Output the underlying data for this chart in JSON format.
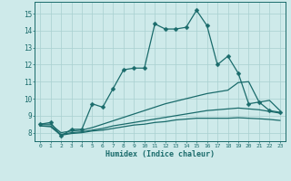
{
  "xlabel": "Humidex (Indice chaleur)",
  "xlim": [
    -0.5,
    23.5
  ],
  "ylim": [
    7.5,
    15.7
  ],
  "xticks": [
    0,
    1,
    2,
    3,
    4,
    5,
    6,
    7,
    8,
    9,
    10,
    11,
    12,
    13,
    14,
    15,
    16,
    17,
    18,
    19,
    20,
    21,
    22,
    23
  ],
  "yticks": [
    8,
    9,
    10,
    11,
    12,
    13,
    14,
    15
  ],
  "bg_color": "#ceeaea",
  "grid_color": "#a8d0d0",
  "line_color": "#1a6b6b",
  "line1_x": [
    0,
    1,
    2,
    3,
    4,
    5,
    6,
    7,
    8,
    9,
    10,
    11,
    12,
    13,
    14,
    15,
    16,
    17,
    18,
    19,
    20,
    21,
    22,
    23
  ],
  "line1_y": [
    8.5,
    8.6,
    7.8,
    8.2,
    8.2,
    9.7,
    9.5,
    10.6,
    11.7,
    11.8,
    11.8,
    14.4,
    14.1,
    14.1,
    14.2,
    15.2,
    14.3,
    12.0,
    12.5,
    11.5,
    9.7,
    9.8,
    9.3,
    9.2
  ],
  "line2_x": [
    0,
    1,
    2,
    3,
    4,
    5,
    6,
    7,
    8,
    9,
    10,
    11,
    12,
    13,
    14,
    15,
    16,
    17,
    18,
    19,
    20,
    21,
    22,
    23
  ],
  "line2_y": [
    8.5,
    8.5,
    8.0,
    8.1,
    8.15,
    8.3,
    8.5,
    8.7,
    8.9,
    9.1,
    9.3,
    9.5,
    9.7,
    9.85,
    10.0,
    10.15,
    10.3,
    10.4,
    10.5,
    10.95,
    11.0,
    9.8,
    9.9,
    9.3
  ],
  "line3_x": [
    0,
    1,
    2,
    3,
    4,
    5,
    6,
    7,
    8,
    9,
    10,
    11,
    12,
    13,
    14,
    15,
    16,
    17,
    18,
    19,
    20,
    21,
    22,
    23
  ],
  "line3_y": [
    8.4,
    8.4,
    7.9,
    8.0,
    8.05,
    8.15,
    8.25,
    8.4,
    8.5,
    8.6,
    8.7,
    8.8,
    8.9,
    9.0,
    9.1,
    9.2,
    9.3,
    9.35,
    9.4,
    9.45,
    9.4,
    9.35,
    9.25,
    9.15
  ],
  "line4_x": [
    0,
    1,
    2,
    3,
    4,
    5,
    6,
    7,
    8,
    9,
    10,
    11,
    12,
    13,
    14,
    15,
    16,
    17,
    18,
    19,
    20,
    21,
    22,
    23
  ],
  "line4_y": [
    8.4,
    8.35,
    7.85,
    7.95,
    8.0,
    8.1,
    8.15,
    8.25,
    8.35,
    8.45,
    8.5,
    8.6,
    8.65,
    8.75,
    8.8,
    8.85,
    8.85,
    8.85,
    8.85,
    8.88,
    8.85,
    8.82,
    8.78,
    8.72
  ]
}
